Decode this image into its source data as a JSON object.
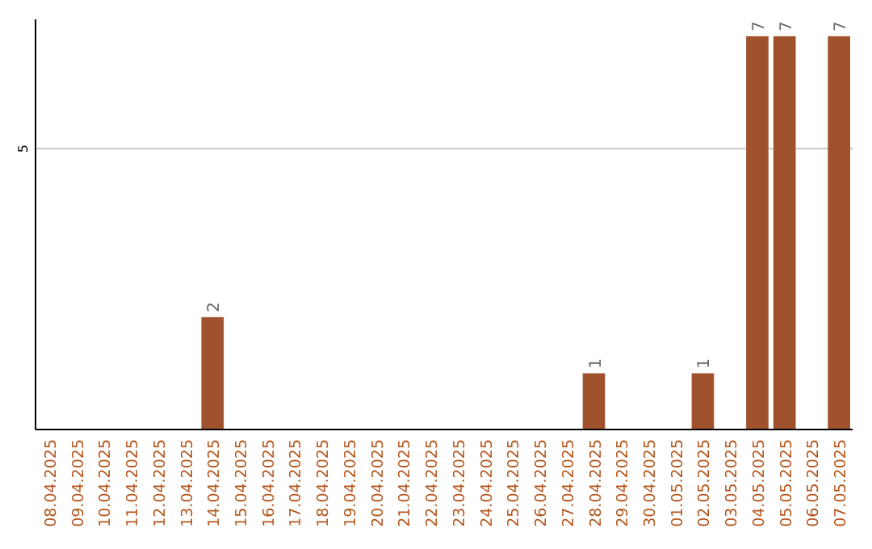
{
  "chart_data": {
    "type": "bar",
    "categories": [
      "08.04.2025",
      "09.04.2025",
      "10.04.2025",
      "11.04.2025",
      "12.04.2025",
      "13.04.2025",
      "14.04.2025",
      "15.04.2025",
      "16.04.2025",
      "17.04.2025",
      "18.04.2025",
      "19.04.2025",
      "20.04.2025",
      "21.04.2025",
      "22.04.2025",
      "23.04.2025",
      "24.04.2025",
      "25.04.2025",
      "26.04.2025",
      "27.04.2025",
      "28.04.2025",
      "29.04.2025",
      "30.04.2025",
      "01.05.2025",
      "02.05.2025",
      "03.05.2025",
      "04.05.2025",
      "05.05.2025",
      "06.05.2025",
      "07.05.2025"
    ],
    "values": [
      0,
      0,
      0,
      0,
      0,
      0,
      2,
      0,
      0,
      0,
      0,
      0,
      0,
      0,
      0,
      0,
      0,
      0,
      0,
      0,
      1,
      0,
      0,
      0,
      1,
      0,
      7,
      7,
      0,
      7
    ],
    "value_labels": [
      null,
      null,
      null,
      null,
      null,
      null,
      "2",
      null,
      null,
      null,
      null,
      null,
      null,
      null,
      null,
      null,
      null,
      null,
      null,
      null,
      "1",
      null,
      null,
      null,
      "1",
      null,
      "7",
      "7",
      null,
      "7"
    ],
    "color": "#a0522d",
    "ylim": [
      0,
      7.3
    ],
    "yticks": [
      5
    ],
    "grid": "y"
  }
}
